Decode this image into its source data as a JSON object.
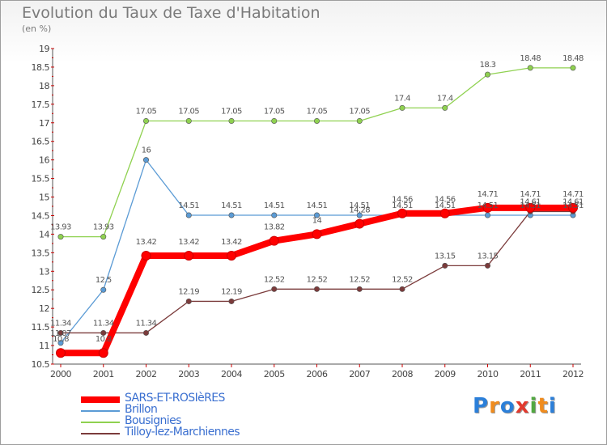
{
  "title": "Evolution du Taux de Taxe d'Habitation",
  "subtitle": "(en %)",
  "brand": {
    "text": "Proxiti",
    "letters": [
      {
        "ch": "P",
        "color": "#2b7fd9"
      },
      {
        "ch": "r",
        "color": "#f08c1e"
      },
      {
        "ch": "o",
        "color": "#2b7fd9"
      },
      {
        "ch": "x",
        "color": "#e23a2e"
      },
      {
        "ch": "i",
        "color": "#52a841"
      },
      {
        "ch": "t",
        "color": "#f08c1e"
      },
      {
        "ch": "i",
        "color": "#2b7fd9"
      }
    ]
  },
  "chart_data": {
    "type": "line",
    "title": "Evolution du Taux de Taxe d'Habitation",
    "ylabel": "(en %)",
    "xlabel": "",
    "x": [
      "2000",
      "2001",
      "2002",
      "2003",
      "2004",
      "2005",
      "2006",
      "2007",
      "2008",
      "2009",
      "2010",
      "2011",
      "2012"
    ],
    "ylim": [
      10.5,
      19
    ],
    "yticks": [
      "10.5",
      "11",
      "11.5",
      "12",
      "12.5",
      "13",
      "13.5",
      "14",
      "14.5",
      "15",
      "15.5",
      "16",
      "16.5",
      "17",
      "17.5",
      "18",
      "18.5",
      "19"
    ],
    "grid": false,
    "legend_position": "bottom-left",
    "series": [
      {
        "name": "SARS-ET-ROSIèRES",
        "color": "#ff0000",
        "values": [
          10.8,
          10.8,
          13.42,
          13.42,
          13.42,
          13.82,
          14,
          14.28,
          14.56,
          14.56,
          14.71,
          14.71,
          14.71
        ],
        "labels": [
          "10.8",
          "10.8",
          "13.42",
          "13.42",
          "13.42",
          "13.82",
          "14",
          "14.28",
          "14.56",
          "14.56",
          "14.71",
          "14.71",
          "14.71"
        ]
      },
      {
        "name": "Brillon",
        "color": "#5b9bd5",
        "values": [
          11.07,
          12.5,
          16,
          14.51,
          14.51,
          14.51,
          14.51,
          14.51,
          14.51,
          14.51,
          14.51,
          14.51,
          14.51
        ],
        "labels": [
          "11.07",
          "12.5",
          "16",
          "14.51",
          "14.51",
          "14.51",
          "14.51",
          "14.51",
          "14.51",
          "14.51",
          "14.51",
          "14.51",
          "14.51"
        ]
      },
      {
        "name": "Bousignies",
        "color": "#8fd150",
        "values": [
          13.93,
          13.93,
          17.05,
          17.05,
          17.05,
          17.05,
          17.05,
          17.05,
          17.4,
          17.4,
          18.3,
          18.48,
          18.48
        ],
        "labels": [
          "13.93",
          "13.93",
          "17.05",
          "17.05",
          "17.05",
          "17.05",
          "17.05",
          "17.05",
          "17.4",
          "17.4",
          "18.3",
          "18.48",
          "18.48"
        ]
      },
      {
        "name": "Tilloy-lez-Marchiennes",
        "color": "#7b3b3b",
        "values": [
          11.34,
          11.34,
          11.34,
          12.19,
          12.19,
          12.52,
          12.52,
          12.52,
          12.52,
          13.15,
          13.15,
          14.61,
          14.61
        ],
        "labels": [
          "11.34",
          "11.34",
          "11.34",
          "12.19",
          "12.19",
          "12.52",
          "12.52",
          "12.52",
          "12.52",
          "13.15",
          "13.15",
          "14.61",
          "14.61"
        ]
      }
    ]
  }
}
